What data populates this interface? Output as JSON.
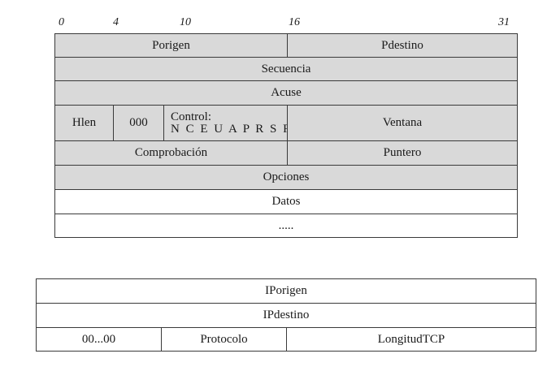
{
  "tcp_header": {
    "bit_labels": [
      "0",
      "4",
      "10",
      "16",
      "31"
    ],
    "porigen": "Porigen",
    "pdestino": "Pdestino",
    "secuencia": "Secuencia",
    "acuse": "Acuse",
    "hlen": "Hlen",
    "reserved": "000",
    "control_title": "Control:",
    "control_flags": "N C E U A P R S F",
    "ventana": "Ventana",
    "comprobacion": "Comprobación",
    "puntero": "Puntero",
    "opciones": "Opciones",
    "datos": "Datos",
    "continuation": "....."
  },
  "pseudo_header": {
    "iporigen": "IPorigen",
    "ipdestino": "IPdestino",
    "zeros": "00...00",
    "protocolo": "Protocolo",
    "longitud": "LongitudTCP"
  },
  "colors": {
    "field_fill": "#d9d9d9",
    "border": "#3a3a3a",
    "background": "#ffffff"
  }
}
